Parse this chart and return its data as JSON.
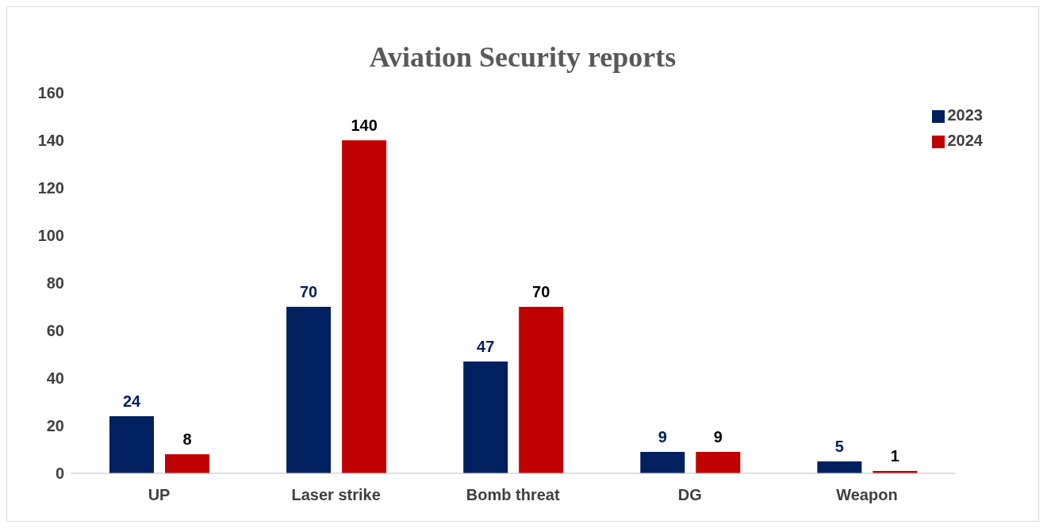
{
  "chart_data": {
    "type": "bar",
    "title": "Aviation Security reports",
    "categories": [
      "UP",
      "Laser strike",
      "Bomb threat",
      "DG",
      "Weapon"
    ],
    "series": [
      {
        "name": "2023",
        "color": "#002060",
        "values": [
          24,
          70,
          47,
          9,
          5
        ]
      },
      {
        "name": "2024",
        "color": "#c00000",
        "values": [
          8,
          140,
          70,
          9,
          1
        ]
      }
    ],
    "ylim": [
      0,
      160
    ],
    "yticks": [
      0,
      20,
      40,
      60,
      80,
      100,
      120,
      140,
      160
    ],
    "grid": false,
    "legend": "top right",
    "data_labels": true
  }
}
